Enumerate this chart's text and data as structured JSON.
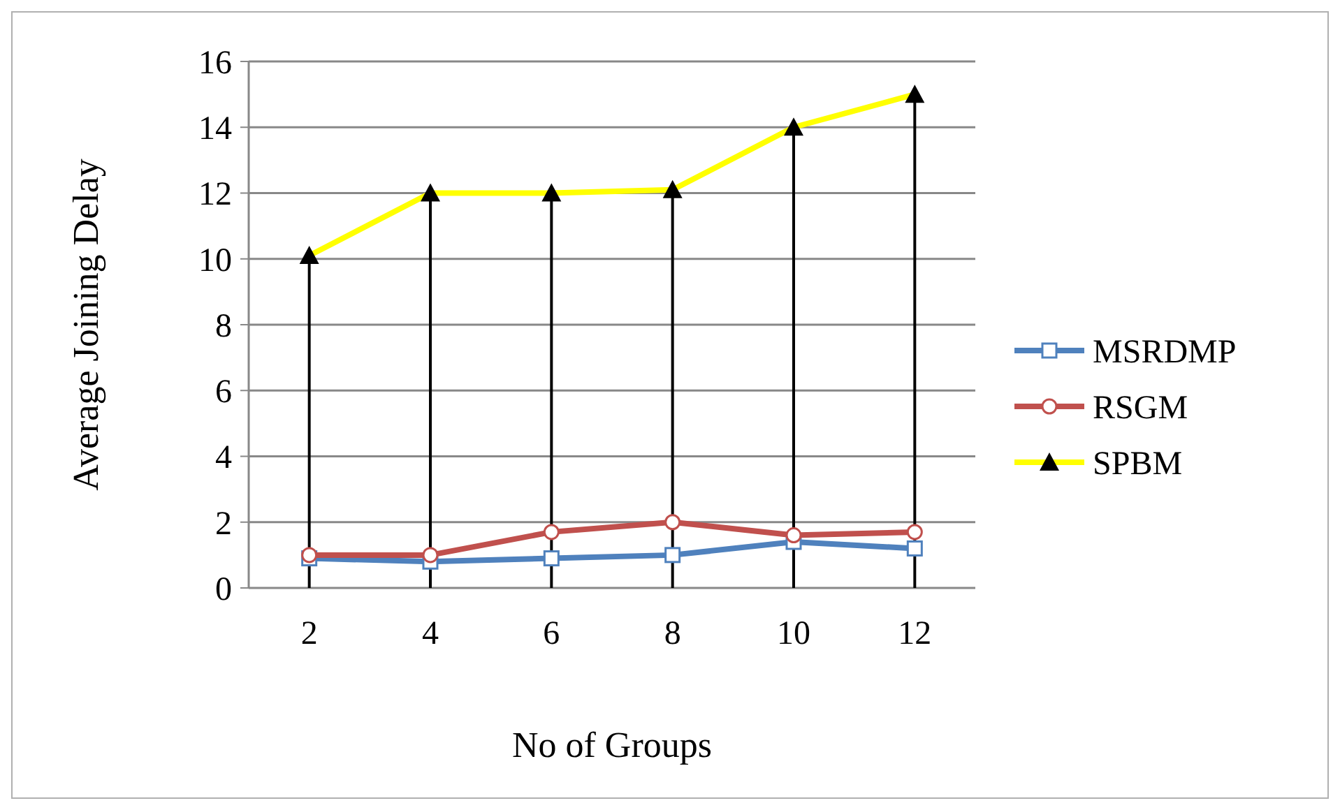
{
  "chart_data": {
    "type": "line",
    "xlabel": "No of Groups",
    "ylabel": "Average Joining Delay",
    "categories": [
      "2",
      "4",
      "6",
      "8",
      "10",
      "12"
    ],
    "series": [
      {
        "name": "MSRDMP",
        "color": "#4f81bd",
        "marker": "square",
        "values": [
          0.9,
          0.8,
          0.9,
          1.0,
          1.4,
          1.2
        ]
      },
      {
        "name": "RSGM",
        "color": "#c0504d",
        "marker": "circle",
        "values": [
          1.0,
          1.0,
          1.7,
          2.0,
          1.6,
          1.7
        ]
      },
      {
        "name": "SPBM",
        "color": "#ffff00",
        "marker": "triangle",
        "values": [
          10.1,
          12.0,
          12.0,
          12.1,
          14.0,
          15.0
        ]
      }
    ],
    "ylim": [
      0,
      16
    ],
    "yticks": [
      0,
      2,
      4,
      6,
      8,
      10,
      12,
      14,
      16
    ],
    "grid": "y",
    "legend": "right",
    "ref_lines": [
      {
        "axis": "x",
        "value": "2",
        "color": "#000000"
      },
      {
        "axis": "x",
        "value": "4",
        "color": "#000000"
      },
      {
        "axis": "x",
        "value": "6",
        "color": "#000000"
      },
      {
        "axis": "x",
        "value": "8",
        "color": "#000000"
      },
      {
        "axis": "x",
        "value": "10",
        "color": "#000000"
      },
      {
        "axis": "x",
        "value": "12",
        "color": "#000000"
      }
    ]
  }
}
